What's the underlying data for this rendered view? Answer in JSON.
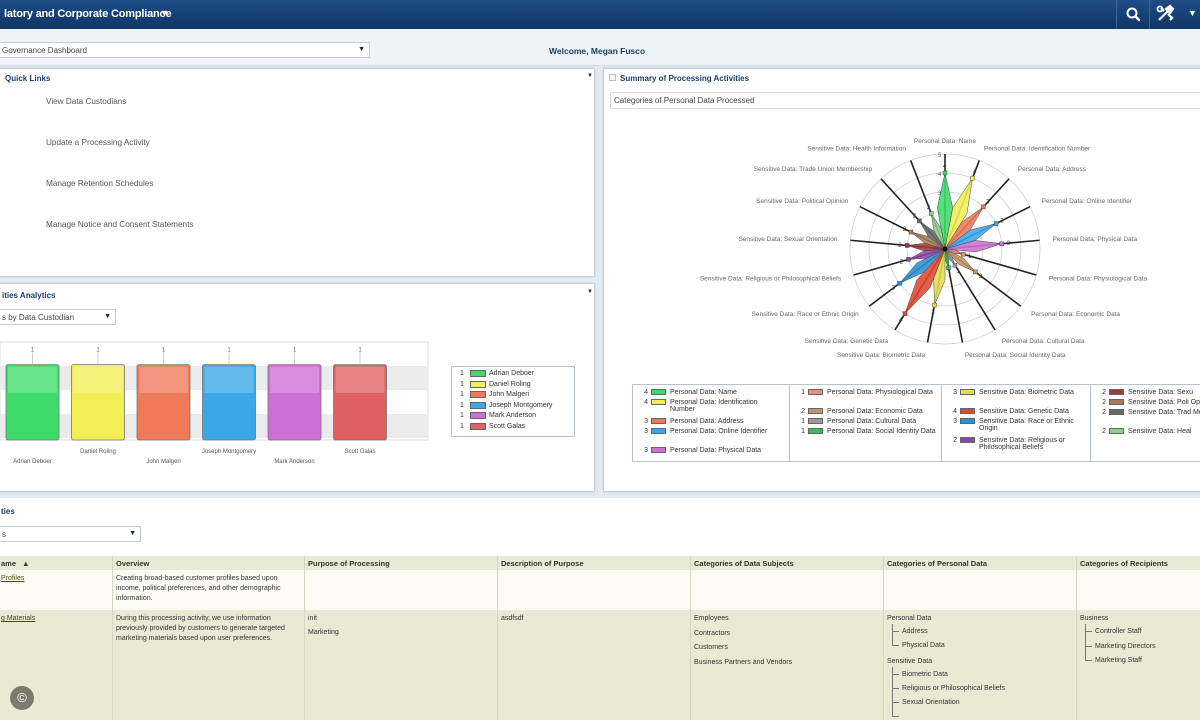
{
  "header": {
    "app_title": "latory and Corporate Compliance"
  },
  "subheader": {
    "dashboard_select": "Governance Dashboard",
    "welcome": "Welcome, Megan Fusco"
  },
  "quick_links": {
    "title": "Quick Links",
    "items": [
      "View Data Custodians",
      "Update a Processing Activity",
      "Manage Retention Schedules",
      "Manage Notice and Consent Statements"
    ]
  },
  "analytics": {
    "title": "ities Analytics",
    "view_select": "s by Data Custodian"
  },
  "summary": {
    "title": "Summary of Processing Activities",
    "chart_title": "Categories of Personal Data Processed"
  },
  "chart_data": [
    {
      "type": "bar",
      "categories": [
        "Adrian Deboer",
        "Daniel Roling",
        "John Malgeri",
        "Joseph Montgomery",
        "Mark Anderson",
        "Scott Galas"
      ],
      "values": [
        1,
        1,
        1,
        1,
        1,
        1
      ],
      "colors": [
        "#3ddc6a",
        "#f2ef55",
        "#f0795a",
        "#3aa7e8",
        "#cd6fd4",
        "#e05f63"
      ],
      "legend": [
        {
          "count": "1",
          "label": "Adrian Deboer"
        },
        {
          "count": "1",
          "label": "Daniel Roling"
        },
        {
          "count": "1",
          "label": "John Malgeri"
        },
        {
          "count": "1",
          "label": "Joseph Montgomery"
        },
        {
          "count": "1",
          "label": "Mark Anderson"
        },
        {
          "count": "1",
          "label": "Scott Galas"
        }
      ],
      "legend_position": "right"
    },
    {
      "type": "radar",
      "categories": [
        "Personal Data: Name",
        "Personal Data: Identification Number",
        "Personal Data: Address",
        "Personal Data: Online Identifier",
        "Personal Data: Physical Data",
        "Personal Data: Physiological Data",
        "Personal Data: Economic Data",
        "Personal Data: Cultural Data",
        "Personal Data: Social Identity Data",
        "Sensitive Data: Biometric Data",
        "Sensitive Data: Genetic Data",
        "Sensitive Data: Race or Ethnic Origin",
        "Sensitive Data: Religious or Philosophical Beliefs",
        "Sensitive Data: Sexual Orientation",
        "Sensitive Data: Political Opinion",
        "Sensitive Data: Trade Union Membership",
        "Sensitive Data: Health Information"
      ],
      "values": [
        4,
        4,
        3,
        3,
        3,
        1,
        2,
        1,
        1,
        3,
        4,
        3,
        2,
        2,
        2,
        2,
        2
      ],
      "colors": [
        "#3ddc6a",
        "#f2ef55",
        "#f0795a",
        "#3aa7e8",
        "#cd6fd4",
        "#e88a8c",
        "#c69462",
        "#999999",
        "#2fc15a",
        "#e5dc4a",
        "#e0472e",
        "#2a90d0",
        "#8e44ad",
        "#9c3a3a",
        "#a67c5b",
        "#666666",
        "#8ccf8c"
      ],
      "rmax": 5,
      "tick_labels": [
        "1",
        "2",
        "3",
        "4",
        "5"
      ],
      "legend": [
        [
          {
            "count": "4",
            "label": "Personal Data: Name"
          },
          {
            "count": "4",
            "label": "Personal Data: Identification Number"
          },
          {
            "count": "3",
            "label": "Personal Data: Address"
          },
          {
            "count": "3",
            "label": "Personal Data: Online Identifier"
          },
          {
            "count": "3",
            "label": "Personal Data: Physical Data"
          }
        ],
        [
          {
            "count": "1",
            "label": "Personal Data: Physiological Data"
          },
          {
            "count": "2",
            "label": "Personal Data: Economic Data"
          },
          {
            "count": "1",
            "label": "Personal Data: Cultural Data"
          },
          {
            "count": "1",
            "label": "Personal Data: Social Identity Data"
          }
        ],
        [
          {
            "count": "3",
            "label": "Sensitive Data: Biometric Data"
          },
          {
            "count": "4",
            "label": "Sensitive Data: Genetic Data"
          },
          {
            "count": "3",
            "label": "Sensitive Data: Race or Ethnic Origin"
          },
          {
            "count": "2",
            "label": "Sensitive Data: Religious or Philosophical Beliefs"
          }
        ],
        [
          {
            "count": "2",
            "label": "Sensitive Data: Sexu"
          },
          {
            "count": "2",
            "label": "Sensitive Data: Poli Opinion"
          },
          {
            "count": "2",
            "label": "Sensitive Data: Trad Membership"
          },
          {
            "count": "2",
            "label": "Sensitive Data: Heal"
          }
        ]
      ]
    }
  ],
  "activities": {
    "title": "ties",
    "filter_select": "s",
    "columns": [
      "ame",
      "Overview",
      "Purpose of Processing",
      "Description of Purpose",
      "Categories of Data Subjects",
      "Categories of Personal Data",
      "Categories of Recipients"
    ],
    "rows": [
      {
        "name": "Profiles",
        "overview": "Creating broad-based customer profiles based upon income, political preferences, and other demographic information.",
        "purpose": [],
        "description": "",
        "subjects": [],
        "personal_data": [],
        "recipients": []
      },
      {
        "name": "g Materials",
        "overview": "During this processing activity, we use information previously provided by customers to generate targeted marketing materials based upon user preferences.",
        "purpose": [
          "init",
          "Marketing"
        ],
        "description": "asdfsdf",
        "subjects": [
          "Employees",
          "Contractors",
          "Customers",
          "Business Partners and Vendors"
        ],
        "personal_data": [
          {
            "group": "Personal Data",
            "items": [
              "Address",
              "Physical Data"
            ]
          },
          {
            "group": "Sensitive Data",
            "items": [
              "Biometric Data",
              "Religious or Philosophical Beliefs",
              "Sexual Orientation"
            ]
          }
        ],
        "recipients": [
          {
            "group": "Business",
            "items": [
              "Controller Staff",
              "Marketing Directors",
              "Marketing Staff"
            ]
          }
        ]
      }
    ]
  },
  "icons": {
    "search": "search-icon",
    "tools": "tools-icon",
    "copyright": "copyright-icon"
  },
  "copyright_symbol": "©"
}
